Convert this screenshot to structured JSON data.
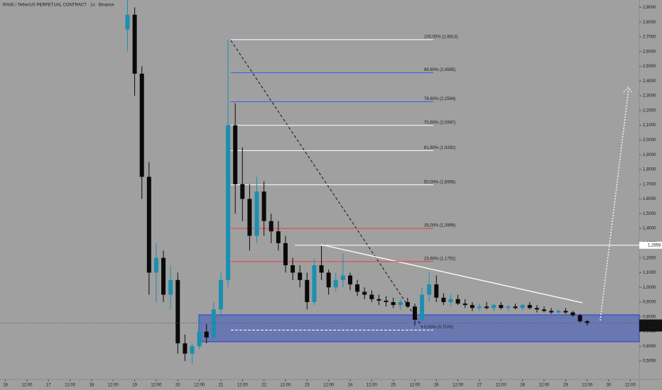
{
  "chart_data": {
    "type": "candlestick",
    "title": "RAVE / TetherUS PERPETUAL CONTRACT · 1ч · Binance",
    "up_color": "#1b8fb0",
    "down_color": "#0a0a0a",
    "x": [
      68,
      72,
      76,
      80,
      84,
      88,
      92,
      96,
      100,
      104,
      108,
      112,
      116,
      120,
      124,
      128,
      132,
      136,
      140,
      144,
      148,
      152,
      156,
      160,
      164,
      168,
      172,
      176,
      180,
      184,
      188,
      192,
      196,
      200,
      204,
      208,
      212,
      216,
      220,
      224,
      228,
      232,
      236,
      240,
      244,
      248,
      252,
      256,
      260,
      264,
      268,
      272,
      276,
      280,
      284,
      288,
      292,
      296,
      300,
      304,
      308,
      312,
      316,
      320,
      324
    ],
    "open": [
      2.75,
      2.85,
      2.45,
      1.75,
      1.1,
      1.2,
      0.95,
      1.05,
      0.62,
      0.55,
      0.6,
      0.7,
      0.66,
      0.85,
      1.05,
      2.1,
      1.7,
      1.6,
      1.35,
      1.65,
      1.45,
      1.38,
      1.3,
      1.15,
      1.1,
      1.05,
      0.9,
      1.15,
      1.1,
      1.0,
      1.05,
      1.08,
      1.02,
      0.97,
      0.95,
      0.92,
      0.91,
      0.9,
      0.88,
      0.9,
      0.87,
      0.78,
      0.95,
      1.02,
      0.93,
      0.9,
      0.92,
      0.89,
      0.88,
      0.86,
      0.87,
      0.86,
      0.88,
      0.86,
      0.87,
      0.86,
      0.88,
      0.86,
      0.85,
      0.84,
      0.83,
      0.84,
      0.83,
      0.81,
      0.77
    ],
    "high": [
      2.95,
      2.9,
      2.5,
      1.85,
      1.3,
      1.25,
      1.15,
      1.1,
      0.68,
      0.62,
      0.8,
      0.75,
      0.9,
      1.1,
      2.68,
      2.25,
      1.95,
      1.7,
      1.75,
      1.72,
      1.5,
      1.45,
      1.35,
      1.2,
      1.15,
      1.1,
      1.2,
      1.28,
      1.12,
      1.1,
      1.23,
      1.1,
      1.05,
      1.0,
      0.98,
      0.95,
      0.94,
      0.93,
      0.92,
      0.93,
      0.89,
      1.0,
      1.1,
      1.08,
      0.96,
      0.95,
      0.95,
      0.92,
      0.9,
      0.89,
      0.9,
      0.89,
      0.9,
      0.88,
      0.89,
      0.89,
      0.9,
      0.88,
      0.87,
      0.86,
      0.85,
      0.86,
      0.84,
      0.82,
      0.78
    ],
    "low": [
      2.6,
      2.3,
      1.6,
      0.95,
      0.9,
      0.9,
      0.85,
      0.55,
      0.5,
      0.48,
      0.58,
      0.62,
      0.64,
      0.8,
      1.0,
      1.5,
      1.45,
      1.25,
      1.3,
      1.35,
      1.3,
      1.25,
      1.1,
      1.05,
      1.0,
      0.85,
      0.88,
      1.05,
      0.95,
      0.97,
      1.0,
      0.98,
      0.94,
      0.92,
      0.9,
      0.88,
      0.87,
      0.86,
      0.85,
      0.86,
      0.74,
      0.76,
      0.9,
      0.9,
      0.88,
      0.87,
      0.88,
      0.86,
      0.84,
      0.84,
      0.85,
      0.84,
      0.85,
      0.84,
      0.85,
      0.84,
      0.85,
      0.83,
      0.83,
      0.82,
      0.81,
      0.82,
      0.8,
      0.76,
      0.74
    ],
    "close": [
      2.85,
      2.45,
      1.75,
      1.1,
      1.2,
      0.95,
      1.05,
      0.62,
      0.55,
      0.6,
      0.7,
      0.66,
      0.85,
      1.05,
      2.1,
      1.7,
      1.6,
      1.35,
      1.65,
      1.45,
      1.38,
      1.3,
      1.15,
      1.1,
      1.05,
      0.9,
      1.15,
      1.1,
      1.0,
      1.05,
      1.08,
      1.02,
      0.97,
      0.95,
      0.92,
      0.91,
      0.9,
      0.88,
      0.9,
      0.87,
      0.78,
      0.95,
      1.02,
      0.93,
      0.9,
      0.92,
      0.89,
      0.88,
      0.86,
      0.87,
      0.86,
      0.88,
      0.86,
      0.87,
      0.86,
      0.88,
      0.86,
      0.85,
      0.84,
      0.83,
      0.84,
      0.83,
      0.81,
      0.77,
      0.7579
    ],
    "xlim": [
      -3,
      353
    ],
    "ylim": [
      0.39,
      2.95
    ],
    "xticks": [
      {
        "value": 0,
        "label": "16"
      },
      {
        "value": 12,
        "label": "12:00"
      },
      {
        "value": 24,
        "label": "17"
      },
      {
        "value": 36,
        "label": "12:00"
      },
      {
        "value": 48,
        "label": "18"
      },
      {
        "value": 60,
        "label": "12:00"
      },
      {
        "value": 72,
        "label": "19"
      },
      {
        "value": 84,
        "label": "12:00"
      },
      {
        "value": 96,
        "label": "20"
      },
      {
        "value": 108,
        "label": "12:00"
      },
      {
        "value": 120,
        "label": "21"
      },
      {
        "value": 132,
        "label": "12:00"
      },
      {
        "value": 144,
        "label": "22"
      },
      {
        "value": 156,
        "label": "12:00"
      },
      {
        "value": 168,
        "label": "23"
      },
      {
        "value": 180,
        "label": "12:00"
      },
      {
        "value": 192,
        "label": "24"
      },
      {
        "value": 204,
        "label": "12:00"
      },
      {
        "value": 216,
        "label": "25"
      },
      {
        "value": 228,
        "label": "12:00"
      },
      {
        "value": 240,
        "label": "26"
      },
      {
        "value": 252,
        "label": "12:00"
      },
      {
        "value": 264,
        "label": "27"
      },
      {
        "value": 276,
        "label": "12:00"
      },
      {
        "value": 288,
        "label": "28"
      },
      {
        "value": 300,
        "label": "12:00"
      },
      {
        "value": 312,
        "label": "29"
      },
      {
        "value": 324,
        "label": "12:00"
      },
      {
        "value": 336,
        "label": "30"
      },
      {
        "value": 348,
        "label": "12:00"
      }
    ],
    "yticks": [
      {
        "value": 0.5,
        "label": "0,5000"
      },
      {
        "value": 0.6,
        "label": "0,6000"
      },
      {
        "value": 0.7,
        "label": "0,7000"
      },
      {
        "value": 0.8,
        "label": "0,8000"
      },
      {
        "value": 0.9,
        "label": "0,9000"
      },
      {
        "value": 1.0,
        "label": "1,0000"
      },
      {
        "value": 1.1,
        "label": "1,1000"
      },
      {
        "value": 1.2,
        "label": "1,2000"
      },
      {
        "value": 1.3,
        "label": "1,3000"
      },
      {
        "value": 1.4,
        "label": "1,4000"
      },
      {
        "value": 1.5,
        "label": "1,5000"
      },
      {
        "value": 1.6,
        "label": "1,6000"
      },
      {
        "value": 1.7,
        "label": "1,7000"
      },
      {
        "value": 1.8,
        "label": "1,8000"
      },
      {
        "value": 1.9,
        "label": "1,9000"
      },
      {
        "value": 2.0,
        "label": "2,0000"
      },
      {
        "value": 2.1,
        "label": "2,1000"
      },
      {
        "value": 2.2,
        "label": "2,2000"
      },
      {
        "value": 2.3,
        "label": "2,3000"
      },
      {
        "value": 2.4,
        "label": "2,4000"
      },
      {
        "value": 2.5,
        "label": "2,5000"
      },
      {
        "value": 2.6,
        "label": "2,6000"
      },
      {
        "value": 2.7,
        "label": "2,7000"
      },
      {
        "value": 2.8,
        "label": "2,8000"
      },
      {
        "value": 2.9,
        "label": "2,9000"
      }
    ],
    "fib_levels": [
      {
        "value": 2.6813,
        "label": "100,00% (2,6813)",
        "color": "#ffffff"
      },
      {
        "value": 2.4565,
        "label": "88,60% (2,4565)",
        "color": "#2962ff"
      },
      {
        "value": 2.2594,
        "label": "78,60% (2,2594)",
        "color": "#2962ff"
      },
      {
        "value": 2.0997,
        "label": "70,50% (2,0997)",
        "color": "#ffffff"
      },
      {
        "value": 1.9282,
        "label": "61,80% (1,9282)",
        "color": "#ffffff"
      },
      {
        "value": 1.6956,
        "label": "50,00% (1,6956)",
        "color": "#ffffff"
      },
      {
        "value": 1.3999,
        "label": "35,00% (1,3999)",
        "color": "#f23645"
      },
      {
        "value": 1.1752,
        "label": "23,60% (1,1752)",
        "color": "#f23645"
      },
      {
        "value": 0.71,
        "label": "0,00% (0,7100)",
        "color": "#ffffff"
      }
    ],
    "level_line": {
      "value": 1.2858,
      "label": "1,2858"
    },
    "last_price": {
      "value": 0.7579,
      "label": "0,7579",
      "countdown": "09:45"
    }
  }
}
